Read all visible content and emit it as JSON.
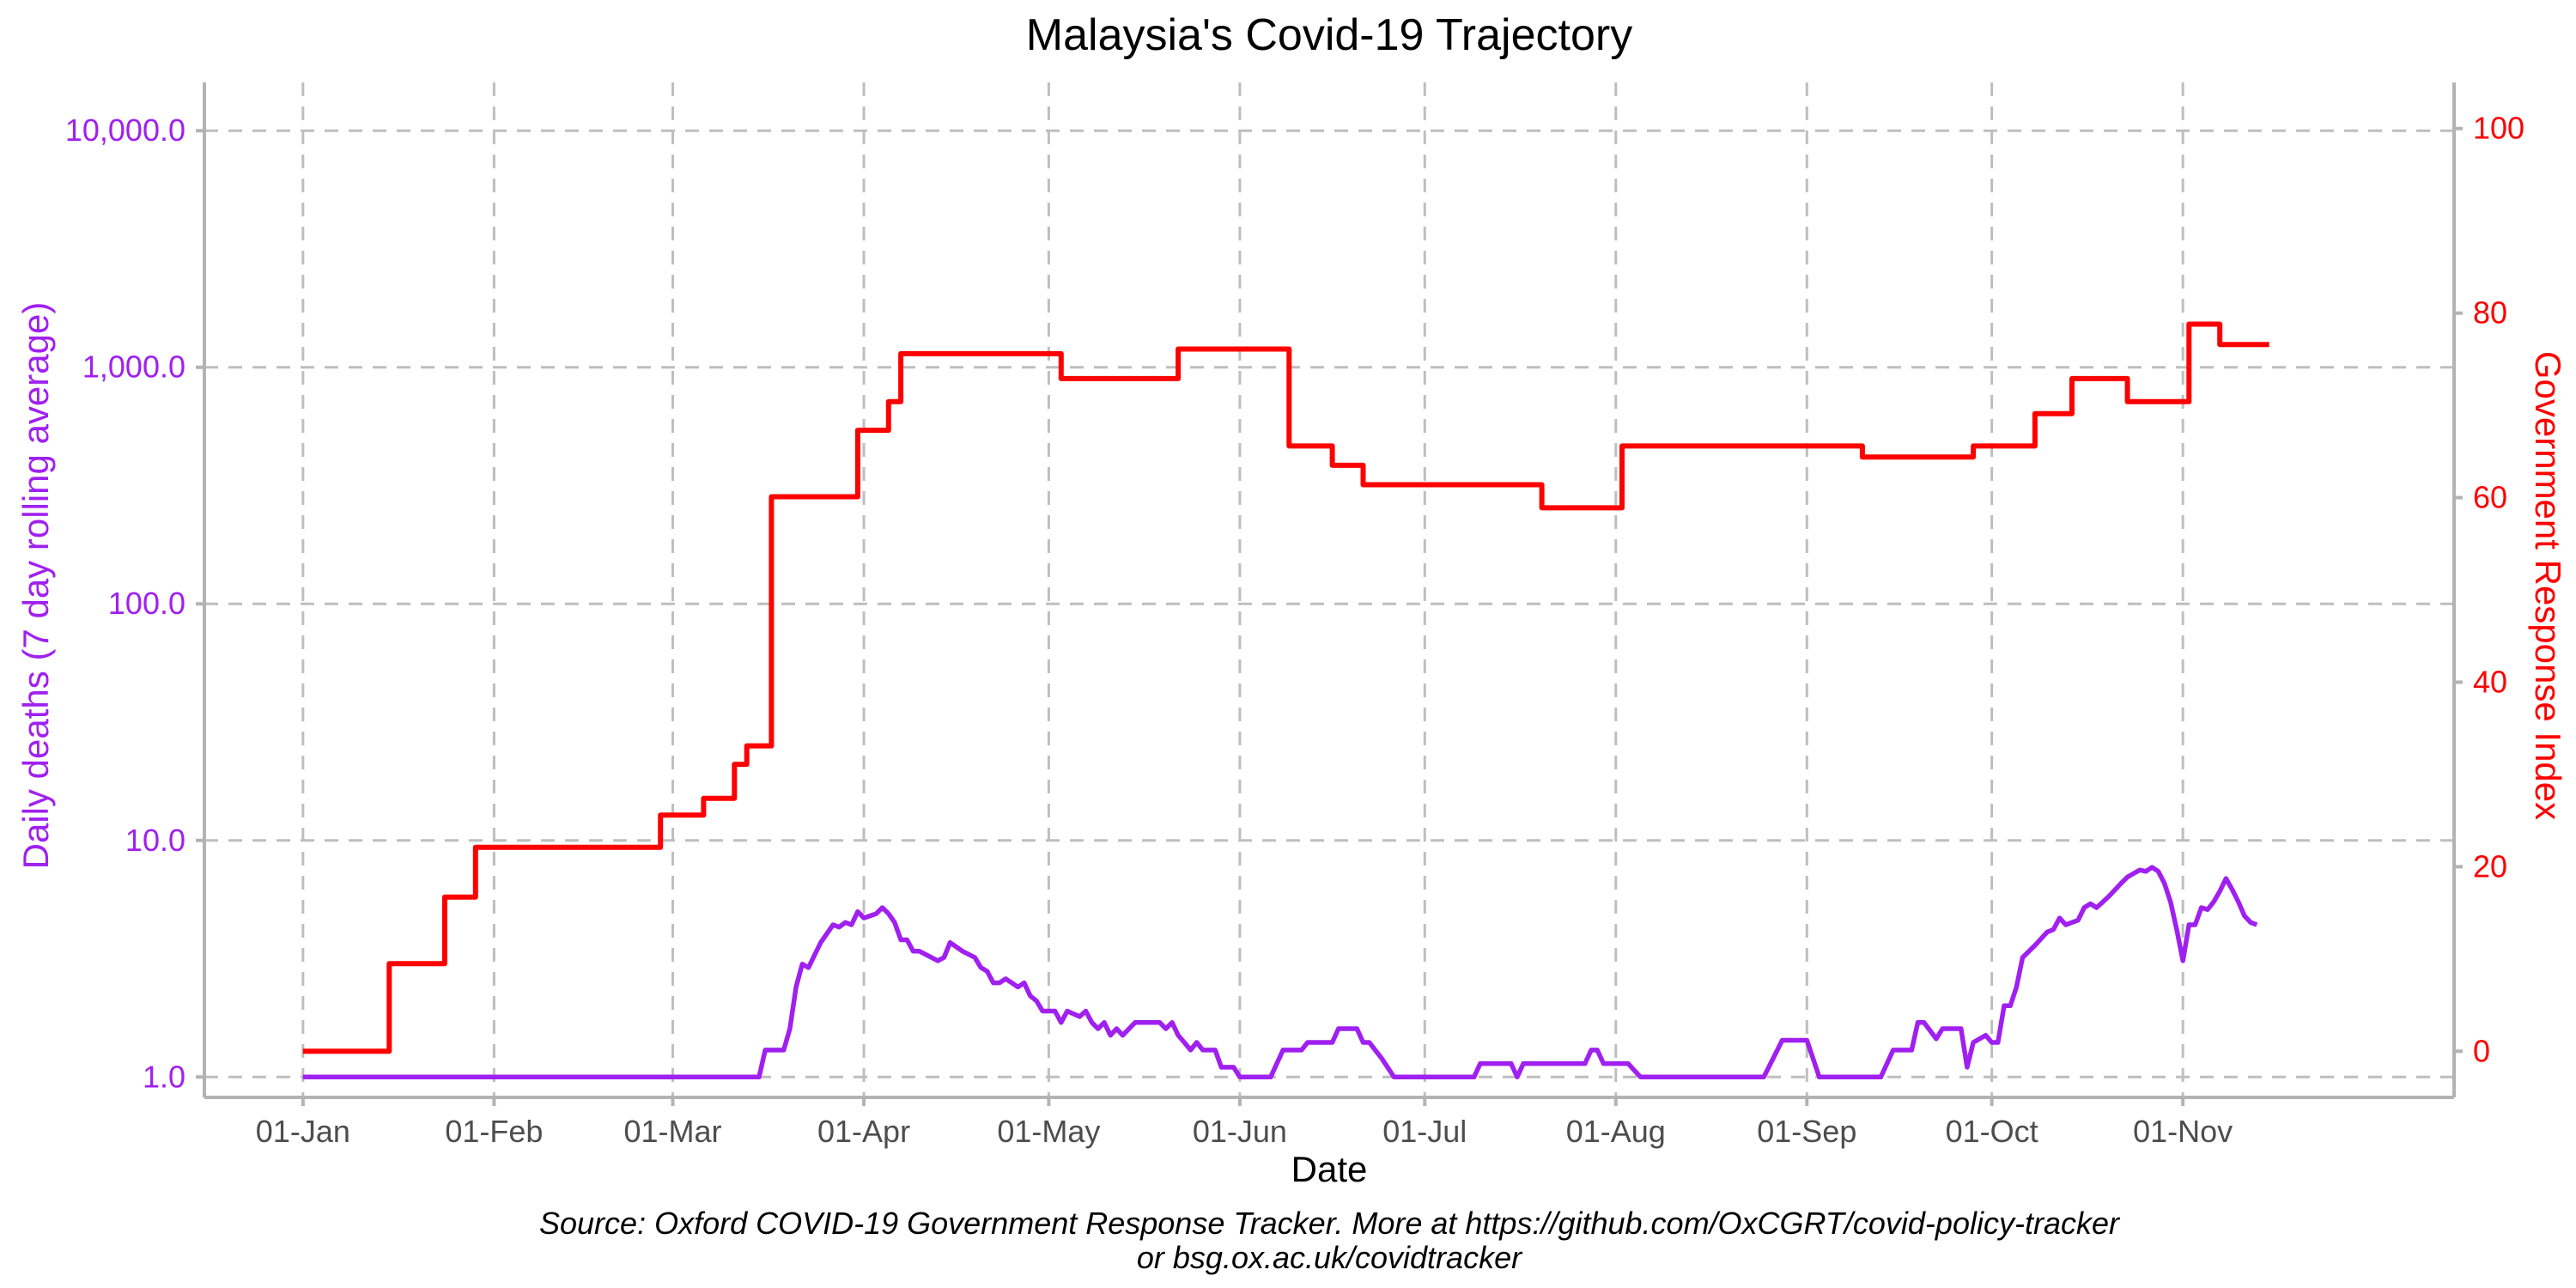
{
  "chart_data": {
    "type": "line",
    "title": "Malaysia's Covid-19 Trajectory",
    "xlabel": "Date",
    "ylabel_left": "Daily deaths (7 day rolling average)",
    "ylabel_right": "Government Response Index",
    "caption_lines": [
      "Source: Oxford COVID-19 Government Response Tracker. More at https://github.com/OxCGRT/covid-policy-tracker",
      "or bsg.ox.ac.uk/covidtracker"
    ],
    "x_tick_labels": [
      "01-Jan",
      "01-Feb",
      "01-Mar",
      "01-Apr",
      "01-May",
      "01-Jun",
      "01-Jul",
      "01-Aug",
      "01-Sep",
      "01-Oct",
      "01-Nov"
    ],
    "x_ticks": [
      "2020-01-01",
      "2020-02-01",
      "2020-03-01",
      "2020-04-01",
      "2020-05-01",
      "2020-06-01",
      "2020-07-01",
      "2020-08-01",
      "2020-09-01",
      "2020-10-01",
      "2020-11-01"
    ],
    "xlim": [
      "2019-12-16",
      "2020-12-15"
    ],
    "y_left": {
      "scale": "log10",
      "ylim": [
        0.82,
        16000
      ],
      "ticks": [
        1,
        10,
        100,
        1000,
        10000
      ],
      "tick_labels": [
        "1.0",
        "10.0",
        "100.0",
        "1,000.0",
        "10,000.0"
      ]
    },
    "y_right": {
      "scale": "linear",
      "ylim": [
        -5,
        105
      ],
      "ticks": [
        0,
        20,
        40,
        60,
        80,
        100
      ],
      "tick_labels": [
        "0",
        "20",
        "40",
        "60",
        "80",
        "100"
      ]
    },
    "grid": true,
    "series": [
      {
        "name": "Government Response Index",
        "axis": "right",
        "color": "#ff0000",
        "step": true,
        "points": [
          [
            "2020-01-01",
            0
          ],
          [
            "2020-01-15",
            9.5
          ],
          [
            "2020-01-24",
            16.7
          ],
          [
            "2020-01-29",
            22.1
          ],
          [
            "2020-02-28",
            25.6
          ],
          [
            "2020-03-06",
            27.4
          ],
          [
            "2020-03-11",
            31.1
          ],
          [
            "2020-03-13",
            33.1
          ],
          [
            "2020-03-17",
            60.1
          ],
          [
            "2020-03-31",
            67.3
          ],
          [
            "2020-04-05",
            70.4
          ],
          [
            "2020-04-07",
            75.6
          ],
          [
            "2020-05-03",
            72.9
          ],
          [
            "2020-05-22",
            76.1
          ],
          [
            "2020-06-09",
            65.6
          ],
          [
            "2020-06-16",
            63.5
          ],
          [
            "2020-06-21",
            61.4
          ],
          [
            "2020-07-20",
            58.9
          ],
          [
            "2020-08-02",
            65.6
          ],
          [
            "2020-09-10",
            64.4
          ],
          [
            "2020-09-28",
            65.6
          ],
          [
            "2020-10-08",
            69.1
          ],
          [
            "2020-10-14",
            72.9
          ],
          [
            "2020-10-23",
            70.4
          ],
          [
            "2020-11-02",
            78.8
          ],
          [
            "2020-11-07",
            76.6
          ],
          [
            "2020-11-15",
            76.6
          ]
        ]
      },
      {
        "name": "Daily deaths (7 day rolling average)",
        "axis": "left",
        "color": "#a020f0",
        "step": false,
        "points": [
          [
            "2020-01-01",
            1.0
          ],
          [
            "2020-03-15",
            1.0
          ],
          [
            "2020-03-16",
            1.3
          ],
          [
            "2020-03-19",
            1.3
          ],
          [
            "2020-03-20",
            1.6
          ],
          [
            "2020-03-21",
            2.4
          ],
          [
            "2020-03-22",
            3.0
          ],
          [
            "2020-03-23",
            2.9
          ],
          [
            "2020-03-25",
            3.7
          ],
          [
            "2020-03-27",
            4.4
          ],
          [
            "2020-03-28",
            4.3
          ],
          [
            "2020-03-29",
            4.5
          ],
          [
            "2020-03-30",
            4.4
          ],
          [
            "2020-03-31",
            5.0
          ],
          [
            "2020-04-01",
            4.7
          ],
          [
            "2020-04-02",
            4.8
          ],
          [
            "2020-04-03",
            4.9
          ],
          [
            "2020-04-04",
            5.2
          ],
          [
            "2020-04-05",
            4.9
          ],
          [
            "2020-04-06",
            4.5
          ],
          [
            "2020-04-07",
            3.8
          ],
          [
            "2020-04-08",
            3.8
          ],
          [
            "2020-04-09",
            3.4
          ],
          [
            "2020-04-10",
            3.4
          ],
          [
            "2020-04-11",
            3.3
          ],
          [
            "2020-04-13",
            3.1
          ],
          [
            "2020-04-14",
            3.2
          ],
          [
            "2020-04-15",
            3.7
          ],
          [
            "2020-04-17",
            3.4
          ],
          [
            "2020-04-19",
            3.2
          ],
          [
            "2020-04-20",
            2.9
          ],
          [
            "2020-04-21",
            2.8
          ],
          [
            "2020-04-22",
            2.5
          ],
          [
            "2020-04-23",
            2.5
          ],
          [
            "2020-04-24",
            2.6
          ],
          [
            "2020-04-25",
            2.5
          ],
          [
            "2020-04-26",
            2.4
          ],
          [
            "2020-04-27",
            2.5
          ],
          [
            "2020-04-28",
            2.2
          ],
          [
            "2020-04-29",
            2.1
          ],
          [
            "2020-04-30",
            1.9
          ],
          [
            "2020-05-02",
            1.9
          ],
          [
            "2020-05-03",
            1.7
          ],
          [
            "2020-05-04",
            1.9
          ],
          [
            "2020-05-06",
            1.8
          ],
          [
            "2020-05-07",
            1.9
          ],
          [
            "2020-05-08",
            1.7
          ],
          [
            "2020-05-09",
            1.6
          ],
          [
            "2020-05-10",
            1.7
          ],
          [
            "2020-05-11",
            1.5
          ],
          [
            "2020-05-12",
            1.6
          ],
          [
            "2020-05-13",
            1.5
          ],
          [
            "2020-05-15",
            1.7
          ],
          [
            "2020-05-19",
            1.7
          ],
          [
            "2020-05-20",
            1.6
          ],
          [
            "2020-05-21",
            1.7
          ],
          [
            "2020-05-22",
            1.5
          ],
          [
            "2020-05-23",
            1.4
          ],
          [
            "2020-05-24",
            1.3
          ],
          [
            "2020-05-25",
            1.4
          ],
          [
            "2020-05-26",
            1.3
          ],
          [
            "2020-05-28",
            1.3
          ],
          [
            "2020-05-29",
            1.1
          ],
          [
            "2020-05-31",
            1.1
          ],
          [
            "2020-06-01",
            1.0
          ],
          [
            "2020-06-06",
            1.0
          ],
          [
            "2020-06-08",
            1.3
          ],
          [
            "2020-06-11",
            1.3
          ],
          [
            "2020-06-12",
            1.4
          ],
          [
            "2020-06-16",
            1.4
          ],
          [
            "2020-06-17",
            1.6
          ],
          [
            "2020-06-20",
            1.6
          ],
          [
            "2020-06-21",
            1.4
          ],
          [
            "2020-06-22",
            1.4
          ],
          [
            "2020-06-24",
            1.2
          ],
          [
            "2020-06-26",
            1.0
          ],
          [
            "2020-07-08",
            1.0
          ],
          [
            "2020-07-09",
            1.0
          ],
          [
            "2020-07-10",
            1.14
          ],
          [
            "2020-07-15",
            1.14
          ],
          [
            "2020-07-16",
            1.0
          ],
          [
            "2020-07-17",
            1.14
          ],
          [
            "2020-07-27",
            1.14
          ],
          [
            "2020-07-28",
            1.3
          ],
          [
            "2020-07-29",
            1.3
          ],
          [
            "2020-07-30",
            1.14
          ],
          [
            "2020-08-03",
            1.14
          ],
          [
            "2020-08-05",
            1.0
          ],
          [
            "2020-08-25",
            1.0
          ],
          [
            "2020-08-28",
            1.43
          ],
          [
            "2020-09-01",
            1.43
          ],
          [
            "2020-09-03",
            1.0
          ],
          [
            "2020-09-13",
            1.0
          ],
          [
            "2020-09-15",
            1.3
          ],
          [
            "2020-09-18",
            1.3
          ],
          [
            "2020-09-19",
            1.7
          ],
          [
            "2020-09-20",
            1.7
          ],
          [
            "2020-09-22",
            1.45
          ],
          [
            "2020-09-23",
            1.6
          ],
          [
            "2020-09-26",
            1.6
          ],
          [
            "2020-09-27",
            1.1
          ],
          [
            "2020-09-28",
            1.4
          ],
          [
            "2020-09-30",
            1.5
          ],
          [
            "2020-10-01",
            1.4
          ],
          [
            "2020-10-02",
            1.4
          ],
          [
            "2020-10-03",
            2.0
          ],
          [
            "2020-10-04",
            2.0
          ],
          [
            "2020-10-05",
            2.4
          ],
          [
            "2020-10-06",
            3.2
          ],
          [
            "2020-10-08",
            3.6
          ],
          [
            "2020-10-10",
            4.1
          ],
          [
            "2020-10-11",
            4.2
          ],
          [
            "2020-10-12",
            4.7
          ],
          [
            "2020-10-13",
            4.4
          ],
          [
            "2020-10-15",
            4.6
          ],
          [
            "2020-10-16",
            5.2
          ],
          [
            "2020-10-17",
            5.4
          ],
          [
            "2020-10-18",
            5.2
          ],
          [
            "2020-10-20",
            5.8
          ],
          [
            "2020-10-22",
            6.6
          ],
          [
            "2020-10-23",
            7.0
          ],
          [
            "2020-10-25",
            7.5
          ],
          [
            "2020-10-26",
            7.4
          ],
          [
            "2020-10-27",
            7.7
          ],
          [
            "2020-10-28",
            7.4
          ],
          [
            "2020-10-29",
            6.6
          ],
          [
            "2020-10-30",
            5.5
          ],
          [
            "2020-10-31",
            4.2
          ],
          [
            "2020-11-01",
            3.1
          ],
          [
            "2020-11-02",
            4.4
          ],
          [
            "2020-11-03",
            4.4
          ],
          [
            "2020-11-04",
            5.2
          ],
          [
            "2020-11-05",
            5.1
          ],
          [
            "2020-11-06",
            5.5
          ],
          [
            "2020-11-07",
            6.1
          ],
          [
            "2020-11-08",
            6.9
          ],
          [
            "2020-11-09",
            6.2
          ],
          [
            "2020-11-10",
            5.5
          ],
          [
            "2020-11-11",
            4.8
          ],
          [
            "2020-11-12",
            4.5
          ],
          [
            "2020-11-13",
            4.4
          ]
        ]
      }
    ]
  }
}
